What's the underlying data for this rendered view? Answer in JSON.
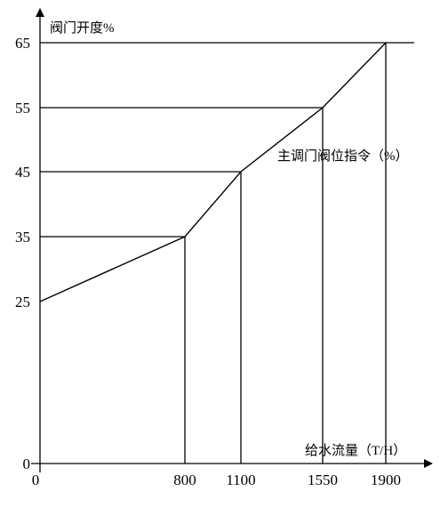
{
  "chart_data": {
    "type": "line",
    "ylabel": "阀门开度%",
    "xlabel": "给水流量（T/H）",
    "annotation": "主调门阀位指令（%）",
    "series": [
      {
        "x": [
          0,
          800,
          1100,
          1550,
          1900
        ],
        "y": [
          25,
          35,
          45,
          55,
          65
        ]
      }
    ],
    "x_ticks": [
      0,
      800,
      1100,
      1550,
      1900
    ],
    "y_ticks": [
      0,
      25,
      35,
      45,
      55,
      65
    ],
    "x_tick_labels": [
      "0",
      "800",
      "1100",
      "1550",
      "1900"
    ],
    "y_tick_labels": [
      "0",
      "25",
      "35",
      "45",
      "55",
      "65"
    ],
    "xlim": [
      0,
      1900
    ],
    "ylim": [
      0,
      65
    ],
    "grid": false,
    "reference_lines": "horizontal from y-axis to each point, vertical from each point down to x-axis, and horizontal line at y=65"
  }
}
